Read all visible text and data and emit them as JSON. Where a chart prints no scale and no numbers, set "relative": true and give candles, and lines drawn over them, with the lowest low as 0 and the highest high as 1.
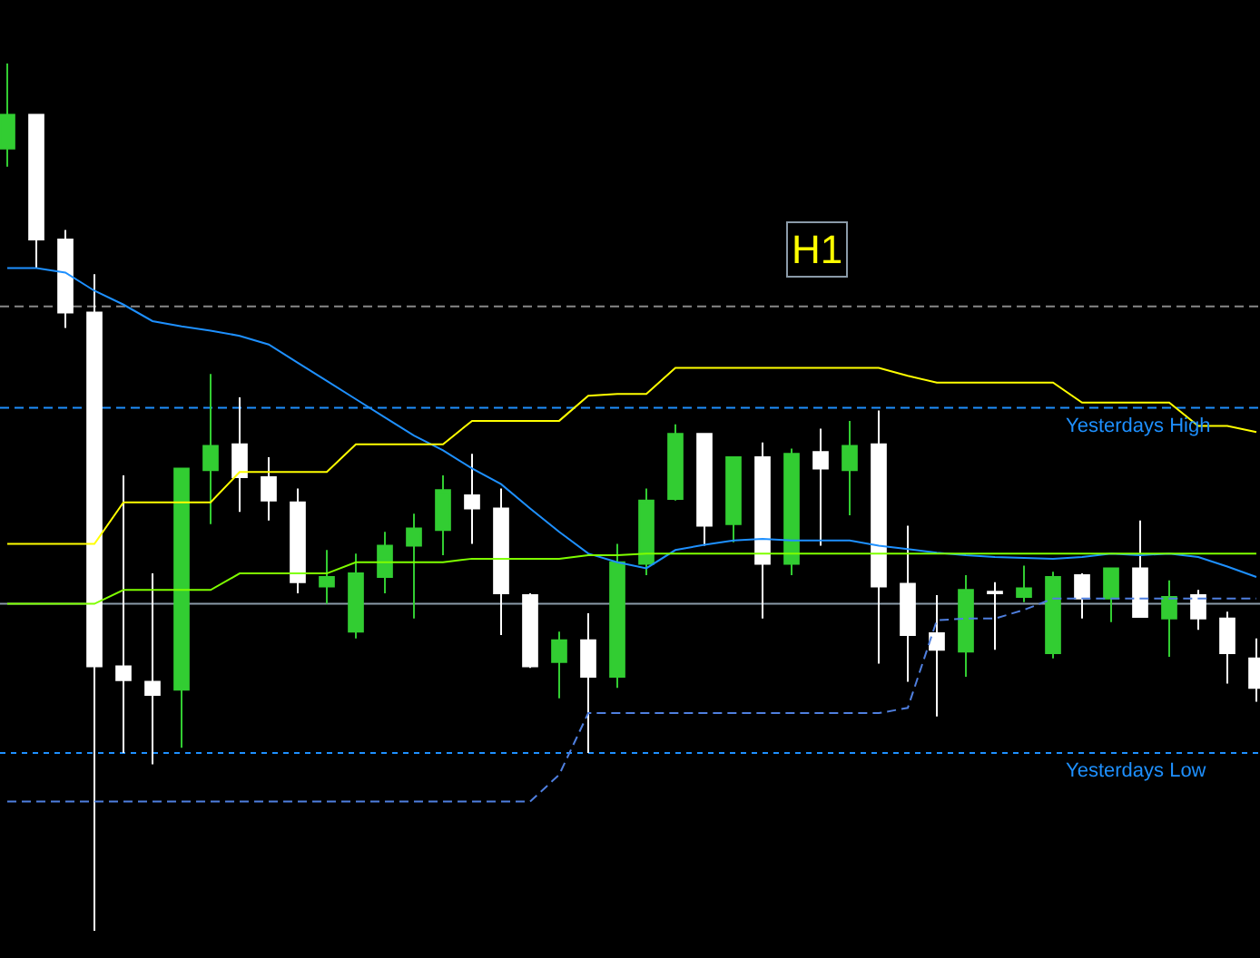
{
  "chart_data": {
    "type": "candlestick",
    "relative": true,
    "categories": [
      null,
      null,
      null,
      null,
      null,
      null,
      null,
      null,
      null,
      null,
      null,
      null,
      null,
      null,
      null,
      null,
      null,
      null,
      null,
      null,
      null,
      null,
      null,
      null,
      null,
      null,
      null,
      null,
      null,
      null,
      null,
      null,
      null,
      null,
      null,
      null,
      null,
      null,
      null,
      null,
      null,
      null,
      null,
      null
    ],
    "ohlc": [
      [
        0.902,
        1.0,
        0.881,
        0.941
      ],
      [
        0.941,
        0.941,
        0.764,
        0.797
      ],
      [
        0.797,
        0.808,
        0.695,
        0.713
      ],
      [
        0.713,
        0.757,
        0,
        0.305
      ],
      [
        0.305,
        0.525,
        0.205,
        0.289
      ],
      [
        0.287,
        0.412,
        0.192,
        0.272
      ],
      [
        0.278,
        0.533,
        0.211,
        0.533
      ],
      [
        0.531,
        0.642,
        0.469,
        0.559
      ],
      [
        0.561,
        0.615,
        0.483,
        0.523
      ],
      [
        0.523,
        0.546,
        0.473,
        0.496
      ],
      [
        0.494,
        0.51,
        0.389,
        0.402
      ],
      [
        0.397,
        0.439,
        0.377,
        0.408
      ],
      [
        0.345,
        0.435,
        0.337,
        0.412
      ],
      [
        0.408,
        0.46,
        0.389,
        0.444
      ],
      [
        0.444,
        0.481,
        0.36,
        0.464
      ],
      [
        0.462,
        0.525,
        0.433,
        0.508
      ],
      [
        0.502,
        0.55,
        0.446,
        0.487
      ],
      [
        0.487,
        0.51,
        0.341,
        0.389
      ],
      [
        0.387,
        0.389,
        0.303,
        0.305
      ],
      [
        0.31,
        0.345,
        0.268,
        0.335
      ],
      [
        0.335,
        0.366,
        0.205,
        0.293
      ],
      [
        0.293,
        0.446,
        0.28,
        0.425
      ],
      [
        0.423,
        0.51,
        0.41,
        0.496
      ],
      [
        0.498,
        0.584,
        0.496,
        0.573
      ],
      [
        0.573,
        0.573,
        0.444,
        0.467
      ],
      [
        0.469,
        0.546,
        0.448,
        0.546
      ],
      [
        0.546,
        0.563,
        0.36,
        0.423
      ],
      [
        0.423,
        0.556,
        0.41,
        0.55
      ],
      [
        0.552,
        0.579,
        0.444,
        0.533
      ],
      [
        0.531,
        0.588,
        0.479,
        0.559
      ],
      [
        0.561,
        0.6,
        0.308,
        0.397
      ],
      [
        0.4,
        0.467,
        0.287,
        0.341
      ],
      [
        0.343,
        0.387,
        0.247,
        0.324
      ],
      [
        0.322,
        0.41,
        0.293,
        0.393
      ],
      [
        0.391,
        0.402,
        0.324,
        0.389
      ],
      [
        0.385,
        0.421,
        0.379,
        0.395
      ],
      [
        0.32,
        0.414,
        0.314,
        0.408
      ],
      [
        0.41,
        0.412,
        0.36,
        0.383
      ],
      [
        0.383,
        0.418,
        0.356,
        0.418
      ],
      [
        0.418,
        0.473,
        0.362,
        0.362
      ],
      [
        0.36,
        0.404,
        0.316,
        0.385
      ],
      [
        0.387,
        0.393,
        0.347,
        0.36
      ],
      [
        0.36,
        0.368,
        0.285,
        0.32
      ],
      [
        0.314,
        0.337,
        0.264,
        0.28
      ]
    ],
    "colors": [
      "#32cd32",
      "#ffffff",
      "#ffffff",
      "#ffffff",
      "#ffffff",
      "#ffffff",
      "#32cd32",
      "#32cd32",
      "#ffffff",
      "#ffffff",
      "#ffffff",
      "#32cd32",
      "#32cd32",
      "#32cd32",
      "#32cd32",
      "#32cd32",
      "#ffffff",
      "#ffffff",
      "#ffffff",
      "#32cd32",
      "#ffffff",
      "#32cd32",
      "#32cd32",
      "#32cd32",
      "#ffffff",
      "#32cd32",
      "#ffffff",
      "#32cd32",
      "#ffffff",
      "#32cd32",
      "#ffffff",
      "#ffffff",
      "#ffffff",
      "#32cd32",
      "#ffffff",
      "#32cd32",
      "#32cd32",
      "#ffffff",
      "#32cd32",
      "#ffffff",
      "#32cd32",
      "#ffffff",
      "#ffffff",
      "#ffffff"
    ],
    "series": [
      {
        "type": "line",
        "color": "#1e90ff",
        "values": [
          0.764,
          0.764,
          0.759,
          0.738,
          0.722,
          0.703,
          0.697,
          0.692,
          0.686,
          0.676,
          0.655,
          0.634,
          0.613,
          0.592,
          0.571,
          0.554,
          0.533,
          0.515,
          0.487,
          0.46,
          0.435,
          0.425,
          0.418,
          0.439,
          0.445,
          0.45,
          0.452,
          0.45,
          0.45,
          0.45,
          0.444,
          0.44,
          0.436,
          0.433,
          0.431,
          0.43,
          0.429,
          0.431,
          0.435,
          0.433,
          0.435,
          0.431,
          0.42,
          0.408
        ]
      },
      {
        "type": "line",
        "color": "#ffff00",
        "values": [
          0.446,
          0.446,
          0.446,
          0.446,
          0.494,
          0.494,
          0.494,
          0.494,
          0.529,
          0.529,
          0.529,
          0.529,
          0.561,
          0.561,
          0.561,
          0.561,
          0.588,
          0.588,
          0.588,
          0.588,
          0.617,
          0.619,
          0.619,
          0.649,
          0.649,
          0.649,
          0.649,
          0.649,
          0.649,
          0.649,
          0.649,
          0.64,
          0.632,
          0.632,
          0.632,
          0.632,
          0.632,
          0.609,
          0.609,
          0.609,
          0.609,
          0.582,
          0.582,
          0.575
        ]
      },
      {
        "type": "line",
        "color": "#7fff00",
        "values": [
          0.377,
          0.377,
          0.377,
          0.377,
          0.393,
          0.393,
          0.393,
          0.393,
          0.412,
          0.412,
          0.412,
          0.412,
          0.425,
          0.425,
          0.425,
          0.425,
          0.429,
          0.429,
          0.429,
          0.429,
          0.433,
          0.433,
          0.435,
          0.435,
          0.435,
          0.435,
          0.435,
          0.435,
          0.435,
          0.435,
          0.435,
          0.435,
          0.435,
          0.435,
          0.435,
          0.435,
          0.435,
          0.435,
          0.435,
          0.435,
          0.435,
          0.435,
          0.435,
          0.435
        ]
      },
      {
        "type": "line",
        "color": "#4f7fdf",
        "line_style": "dashed",
        "values": [
          0.149,
          0.149,
          0.149,
          0.149,
          0.149,
          0.149,
          0.149,
          0.149,
          0.149,
          0.149,
          0.149,
          0.149,
          0.149,
          0.149,
          0.149,
          0.149,
          0.149,
          0.149,
          0.149,
          0.18,
          0.251,
          0.251,
          0.251,
          0.251,
          0.251,
          0.251,
          0.251,
          0.251,
          0.251,
          0.251,
          0.251,
          0.257,
          0.358,
          0.36,
          0.36,
          0.37,
          0.383,
          0.383,
          0.383,
          0.383,
          0.383,
          0.383,
          0.383,
          0.383
        ]
      }
    ],
    "ref_lines": [
      {
        "axis": "y",
        "value": 0.603,
        "label": "Yesterdays High",
        "color": "#1e90ff",
        "line_style": "dashed"
      },
      {
        "axis": "y",
        "value": 0.205,
        "label": "Yesterdays Low",
        "color": "#1e90ff",
        "line_style": "dotted"
      },
      {
        "axis": "y",
        "value": 0.72,
        "color": "#888888",
        "line_style": "dashed"
      },
      {
        "axis": "y",
        "value": 0.377,
        "color": "#8a9aa8",
        "line_style": "solid"
      }
    ],
    "annotations": [
      "H1"
    ]
  }
}
